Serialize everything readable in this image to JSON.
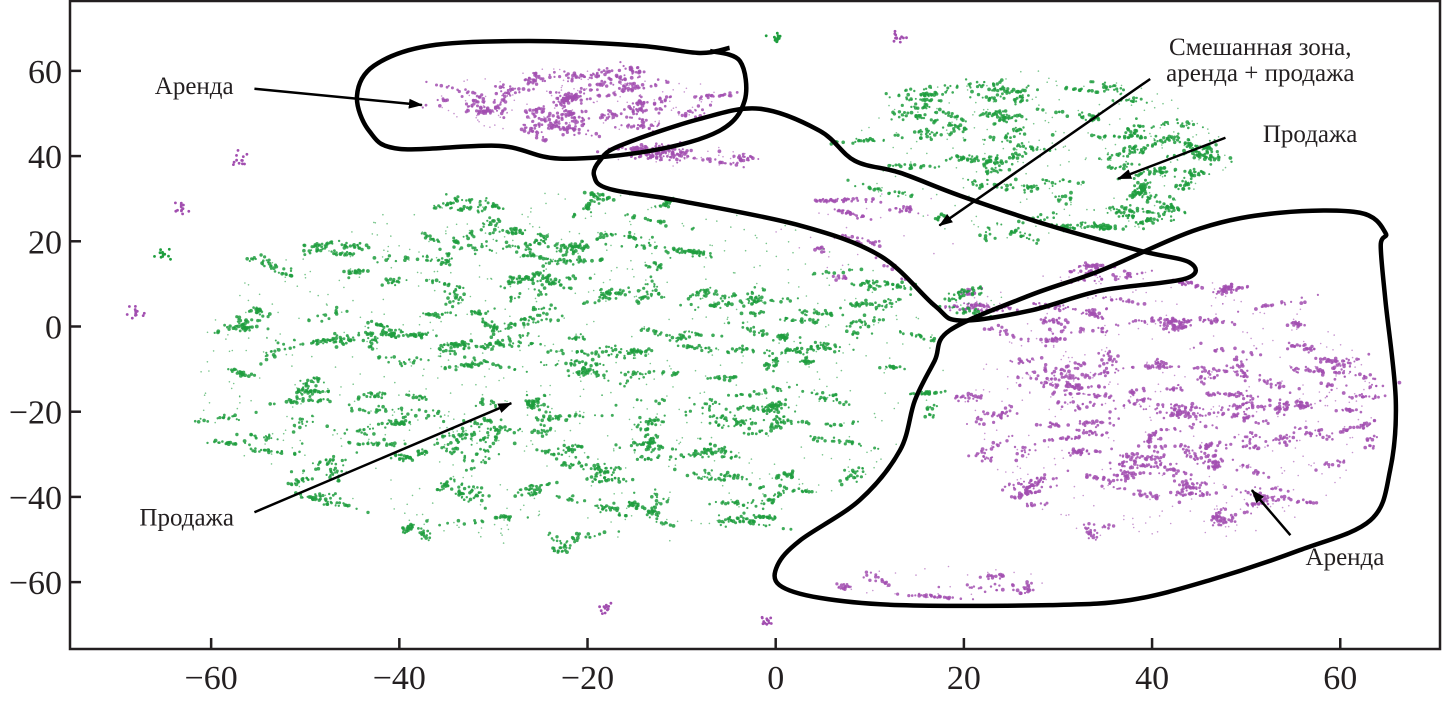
{
  "chart_data": {
    "type": "scatter",
    "xlim": [
      -75,
      70.6
    ],
    "ylim": [
      -75.7,
      76.4
    ],
    "xticks": [
      -60,
      -40,
      -20,
      0,
      20,
      40,
      60
    ],
    "yticks": [
      -60,
      -40,
      -20,
      0,
      20,
      40,
      60
    ],
    "xtick_labels": [
      "−60",
      "−40",
      "−20",
      "0",
      "20",
      "40",
      "60"
    ],
    "ytick_labels": [
      "−60",
      "−40",
      "−20",
      "0",
      "20",
      "40",
      "60"
    ],
    "grid": false,
    "colors": {
      "green": "#1e9e3e",
      "purple": "#a24fb0",
      "outline": "#000000",
      "axis": "#231f20"
    },
    "clusters": [
      {
        "color": "green",
        "center": [
          -22,
          -10
        ],
        "spread": [
          40,
          42
        ],
        "clumps": 230
      },
      {
        "color": "green",
        "center": [
          28,
          40
        ],
        "spread": [
          20,
          20
        ],
        "clumps": 75
      },
      {
        "color": "purple",
        "center": [
          -21,
          53
        ],
        "spread": [
          15,
          8
        ],
        "clumps": 40
      },
      {
        "color": "purple",
        "center": [
          42,
          -20
        ],
        "spread": [
          22,
          31
        ],
        "clumps": 120
      },
      {
        "color": "purple",
        "center": [
          -10,
          40
        ],
        "spread": [
          8,
          2.5
        ],
        "clumps": 10
      },
      {
        "color": "purple",
        "center": [
          10,
          22
        ],
        "spread": [
          10,
          12
        ],
        "clumps": 8
      },
      {
        "color": "purple",
        "center": [
          22,
          6
        ],
        "spread": [
          3,
          3
        ],
        "clumps": 5
      },
      {
        "color": "green",
        "center": [
          22,
          6
        ],
        "spread": [
          3,
          3
        ],
        "clumps": 3
      },
      {
        "color": "purple",
        "center": [
          34,
          12
        ],
        "spread": [
          6,
          2.5
        ],
        "clumps": 6
      },
      {
        "color": "purple",
        "center": [
          18,
          -60
        ],
        "spread": [
          12,
          4
        ],
        "clumps": 8
      }
    ],
    "outliers": [
      {
        "color": "purple",
        "x": -68,
        "y": 3
      },
      {
        "color": "purple",
        "x": -63,
        "y": 28
      },
      {
        "color": "purple",
        "x": -57,
        "y": 39
      },
      {
        "color": "green",
        "x": -65,
        "y": 17
      },
      {
        "color": "purple",
        "x": -18,
        "y": -66
      },
      {
        "color": "purple",
        "x": 13,
        "y": 68
      },
      {
        "color": "green",
        "x": 0,
        "y": 67
      },
      {
        "color": "purple",
        "x": -1,
        "y": -69
      }
    ],
    "outlines": [
      {
        "points": [
          [
            -7.0,
            64.7
          ],
          [
            -3.8,
            62.3
          ],
          [
            -3.3,
            53.0
          ],
          [
            -6.0,
            45.9
          ],
          [
            -13.4,
            41.2
          ],
          [
            -23.0,
            39.4
          ],
          [
            -29.4,
            42.4
          ],
          [
            -40.0,
            41.7
          ],
          [
            -43.2,
            45.9
          ],
          [
            -44.5,
            54.1
          ],
          [
            -42.7,
            61.2
          ],
          [
            -36.8,
            65.9
          ],
          [
            -26.2,
            67.0
          ],
          [
            -14.5,
            65.9
          ],
          [
            -8.1,
            64.2
          ],
          [
            -4.9,
            65.4
          ]
        ],
        "closed": false
      },
      {
        "points": [
          [
            -18.7,
            38.9
          ],
          [
            -16.6,
            42.4
          ],
          [
            -8.1,
            48.7
          ],
          [
            -1.7,
            51.1
          ],
          [
            4.7,
            45.9
          ],
          [
            8.4,
            38.9
          ],
          [
            13.2,
            36.1
          ],
          [
            19.6,
            30.7
          ],
          [
            29.1,
            23.7
          ],
          [
            38.7,
            17.8
          ],
          [
            44.0,
            15.0
          ],
          [
            43.5,
            11.2
          ],
          [
            34.5,
            8.4
          ],
          [
            27.0,
            3.7
          ],
          [
            19.6,
            1.4
          ],
          [
            16.9,
            4.9
          ],
          [
            11.1,
            16.6
          ],
          [
            2.6,
            23.7
          ],
          [
            -10.2,
            29.5
          ],
          [
            -17.7,
            32.3
          ],
          [
            -19.3,
            35.4
          ]
        ],
        "closed": true
      },
      {
        "points": [
          [
            18.5,
            -0.9
          ],
          [
            27.0,
            7.3
          ],
          [
            34.5,
            13.1
          ],
          [
            45.1,
            23.0
          ],
          [
            53.6,
            26.7
          ],
          [
            62.1,
            26.7
          ],
          [
            64.8,
            22.0
          ],
          [
            64.3,
            19.0
          ],
          [
            64.8,
            6.1
          ],
          [
            65.9,
            -17.3
          ],
          [
            65.3,
            -33.7
          ],
          [
            63.2,
            -45.5
          ],
          [
            55.7,
            -52.5
          ],
          [
            46.2,
            -59.5
          ],
          [
            37.7,
            -64.2
          ],
          [
            29.1,
            -65.4
          ],
          [
            13.2,
            -65.4
          ],
          [
            4.7,
            -63.7
          ],
          [
            0.4,
            -60.7
          ],
          [
            0.2,
            -56.0
          ],
          [
            2.6,
            -50.2
          ],
          [
            8.9,
            -40.8
          ],
          [
            13.2,
            -29.1
          ],
          [
            14.8,
            -17.3
          ],
          [
            16.9,
            -8.0
          ]
        ],
        "closed": true
      }
    ],
    "annotations": [
      {
        "lines": [
          "Аренда"
        ],
        "at": [
          -61.8,
          56.5
        ],
        "arrow_from": [
          -55.4,
          55.8
        ],
        "arrow_to": [
          -37.6,
          52.0
        ]
      },
      {
        "lines": [
          "Смешанная зона,",
          "аренда + продажа"
        ],
        "at": [
          51.5,
          62.5
        ],
        "arrow_from": [
          39.8,
          58.1
        ],
        "arrow_to": [
          17.4,
          23.7
        ]
      },
      {
        "lines": [
          "Продажа"
        ],
        "at": [
          56.8,
          45.2
        ],
        "arrow_from": [
          47.8,
          44.3
        ],
        "arrow_to": [
          36.4,
          34.7
        ]
      },
      {
        "lines": [
          "Аренда"
        ],
        "at": [
          60.5,
          -54.1
        ],
        "arrow_from": [
          54.7,
          -49.0
        ],
        "arrow_to": [
          50.6,
          -38.4
        ]
      },
      {
        "lines": [
          "Продажа"
        ],
        "at": [
          -62.6,
          -44.8
        ],
        "arrow_from": [
          -55.4,
          -43.6
        ],
        "arrow_to": [
          -28.1,
          -18.0
        ]
      }
    ]
  }
}
